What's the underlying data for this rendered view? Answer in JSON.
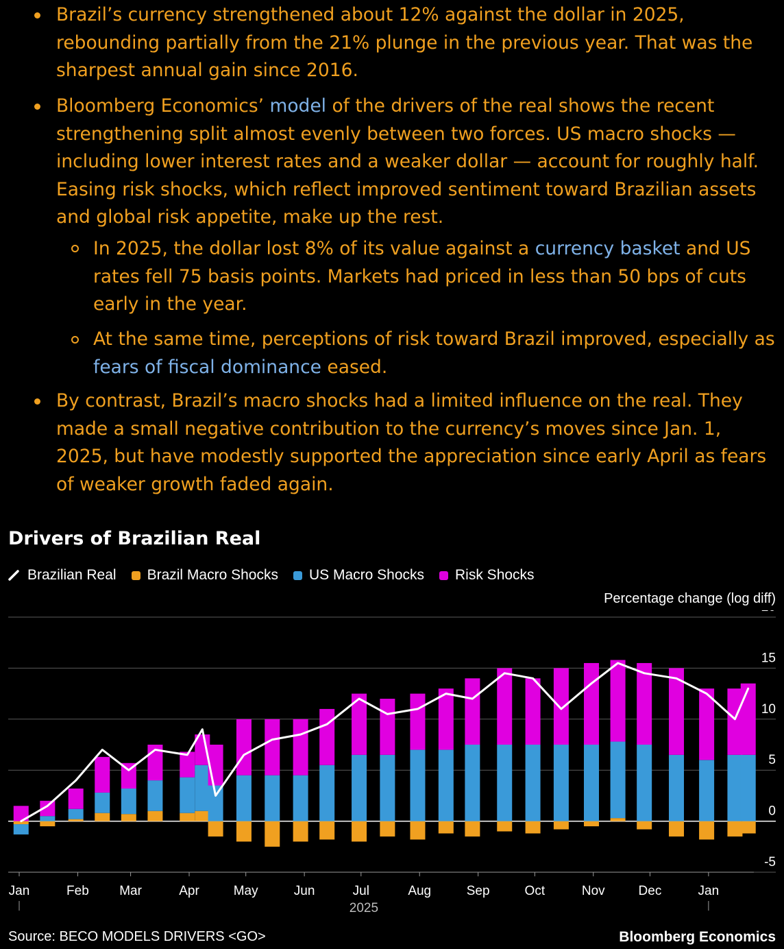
{
  "article": {
    "bullet1": "Brazil’s currency strengthened about 12% against the dollar in 2025, rebounding partially from the 21% plunge in the previous year. That was the sharpest annual gain since 2016.",
    "bullet2_pre": "Bloomberg Economics’ ",
    "bullet2_link": "model",
    "bullet2_post": " of the drivers of the real shows the recent strengthening split almost evenly between two forces. US macro shocks — including lower interest rates and a weaker dollar — account for roughly half. Easing risk shocks, which reflect improved sentiment toward Brazilian assets and global risk appetite, make up the rest.",
    "sub1_pre": "In 2025, the dollar lost 8% of its value against a ",
    "sub1_link": "currency basket",
    "sub1_post": " and US rates fell 75 basis points. Markets had priced in less than 50 bps of cuts early in the year.",
    "sub2_pre": "At the same time, perceptions of risk toward Brazil improved, especially as ",
    "sub2_link": "fears of fiscal dominance",
    "sub2_post": " eased.",
    "bullet3": "By contrast, Brazil’s macro shocks had a limited influence on the real. They made a small negative contribution to the currency’s moves since Jan. 1, 2025, but have modestly supported the appreciation since early April as fears of weaker growth faded again."
  },
  "colors": {
    "text": "#f0a020",
    "link": "#7fb2e8",
    "real_line": "#ffffff",
    "brazil_macro": "#f0a020",
    "us_macro": "#3a9ad9",
    "risk": "#e000e0"
  },
  "footer": {
    "source": "Source: BECO MODELS DRIVERS <GO>",
    "brand": "Bloomberg Economics"
  },
  "chart_data": {
    "type": "bar",
    "stacked": true,
    "title": "Drivers of Brazilian Real",
    "ylabel": "Percentage change (log diff)",
    "ylim": [
      -5,
      20
    ],
    "yticks": [
      -5,
      0,
      5,
      10,
      15,
      20
    ],
    "year_label": "2025",
    "grid": true,
    "legend_position": "top-left",
    "x": [
      "2025-01-02",
      "2025-01-16",
      "2025-01-31",
      "2025-02-14",
      "2025-02-28",
      "2025-03-14",
      "2025-03-31",
      "2025-04-08",
      "2025-04-15",
      "2025-04-30",
      "2025-05-15",
      "2025-05-30",
      "2025-06-13",
      "2025-06-30",
      "2025-07-15",
      "2025-07-31",
      "2025-08-15",
      "2025-08-29",
      "2025-09-15",
      "2025-09-30",
      "2025-10-15",
      "2025-10-31",
      "2025-11-14",
      "2025-11-28",
      "2025-12-15",
      "2025-12-31",
      "2026-01-15",
      "2026-01-22"
    ],
    "x_tick_labels": [
      {
        "label": "Jan",
        "date": "2025-01-01"
      },
      {
        "label": "Feb",
        "date": "2025-02-01"
      },
      {
        "label": "Mar",
        "date": "2025-03-01"
      },
      {
        "label": "Apr",
        "date": "2025-04-01"
      },
      {
        "label": "May",
        "date": "2025-05-01"
      },
      {
        "label": "Jun",
        "date": "2025-06-01"
      },
      {
        "label": "Jul",
        "date": "2025-07-01"
      },
      {
        "label": "Aug",
        "date": "2025-08-01"
      },
      {
        "label": "Sep",
        "date": "2025-09-01"
      },
      {
        "label": "Oct",
        "date": "2025-10-01"
      },
      {
        "label": "Nov",
        "date": "2025-11-01"
      },
      {
        "label": "Dec",
        "date": "2025-12-01"
      },
      {
        "label": "Jan",
        "date": "2026-01-01"
      }
    ],
    "x_range": [
      "2025-01-01",
      "2026-01-25"
    ],
    "series": [
      {
        "name": "Brazil Macro Shocks",
        "type": "bar",
        "values": [
          -0.3,
          -0.5,
          0.2,
          0.8,
          0.7,
          1.0,
          0.8,
          1.0,
          -1.5,
          -2.0,
          -2.5,
          -2.0,
          -1.8,
          -2.0,
          -1.5,
          -1.8,
          -1.2,
          -1.5,
          -1.0,
          -1.2,
          -0.8,
          -0.5,
          0.3,
          -0.8,
          -1.5,
          -1.8,
          -1.5,
          -1.2
        ]
      },
      {
        "name": "US Macro Shocks",
        "type": "bar",
        "values": [
          -1.0,
          0.5,
          1.0,
          2.0,
          2.5,
          3.0,
          3.5,
          4.5,
          3.5,
          4.5,
          4.5,
          4.5,
          5.5,
          6.5,
          6.5,
          7.0,
          7.0,
          7.5,
          7.5,
          7.5,
          7.5,
          7.5,
          7.5,
          7.5,
          6.5,
          6.0,
          6.5,
          6.5
        ]
      },
      {
        "name": "Risk Shocks",
        "type": "bar",
        "values": [
          1.5,
          1.5,
          2.0,
          3.5,
          2.5,
          3.5,
          2.5,
          3.0,
          4.0,
          5.5,
          5.5,
          5.5,
          5.5,
          6.0,
          5.5,
          5.5,
          6.0,
          6.5,
          7.5,
          6.5,
          7.5,
          8.0,
          8.0,
          8.0,
          8.5,
          7.0,
          6.5,
          7.0
        ]
      },
      {
        "name": "Brazilian Real",
        "type": "line",
        "values": [
          0.0,
          1.5,
          4.0,
          7.0,
          5.0,
          7.0,
          6.5,
          9.0,
          2.5,
          6.5,
          8.0,
          8.5,
          9.5,
          12.0,
          10.5,
          11.0,
          12.5,
          12.0,
          14.5,
          14.0,
          11.0,
          13.5,
          15.5,
          14.5,
          14.0,
          12.5,
          10.0,
          13.0
        ]
      }
    ]
  }
}
